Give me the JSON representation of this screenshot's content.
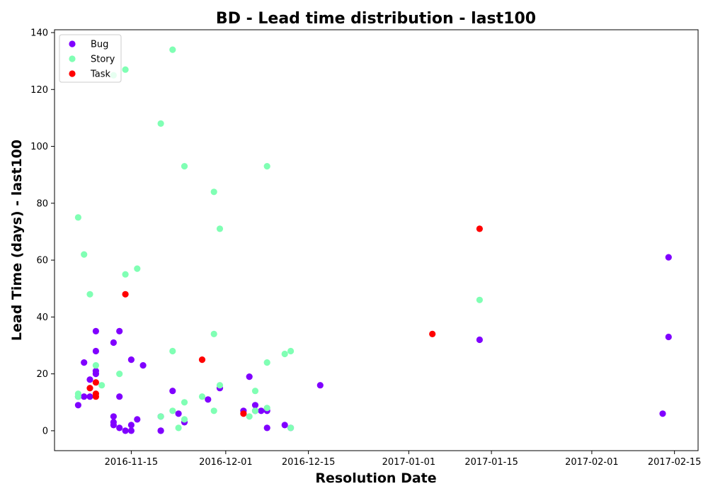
{
  "chart_data": {
    "type": "scatter",
    "title": "BD - Lead time distribution - last100",
    "xlabel": "Resolution Date",
    "ylabel": "Lead Time (days) - last100",
    "x_is_date": true,
    "xlim": [
      "2016-11-02",
      "2017-02-19"
    ],
    "ylim": [
      -7,
      141
    ],
    "x_ticks": [
      "2016-11-15",
      "2016-12-01",
      "2016-12-15",
      "2017-01-01",
      "2017-01-15",
      "2017-02-01",
      "2017-02-15"
    ],
    "x_tick_labels": [
      "2016-11-15",
      "2016-12-01",
      "2016-12-15",
      "2017-01-01",
      "2017-01-15",
      "2017-02-01",
      "2017-02-15"
    ],
    "y_ticks": [
      0,
      20,
      40,
      60,
      80,
      100,
      120,
      140
    ],
    "y_tick_labels": [
      "0",
      "20",
      "40",
      "60",
      "80",
      "100",
      "120",
      "140"
    ],
    "grid": false,
    "legend": "top-left",
    "series": [
      {
        "name": "Bug",
        "color": "#8000ff",
        "points": [
          {
            "x": "2016-11-06",
            "y": 9
          },
          {
            "x": "2016-11-06",
            "y": 12
          },
          {
            "x": "2016-11-07",
            "y": 24
          },
          {
            "x": "2016-11-07",
            "y": 12
          },
          {
            "x": "2016-11-08",
            "y": 18
          },
          {
            "x": "2016-11-08",
            "y": 12
          },
          {
            "x": "2016-11-09",
            "y": 28
          },
          {
            "x": "2016-11-09",
            "y": 35
          },
          {
            "x": "2016-11-09",
            "y": 21
          },
          {
            "x": "2016-11-09",
            "y": 20
          },
          {
            "x": "2016-11-12",
            "y": 31
          },
          {
            "x": "2016-11-12",
            "y": 5
          },
          {
            "x": "2016-11-12",
            "y": 3
          },
          {
            "x": "2016-11-12",
            "y": 2
          },
          {
            "x": "2016-11-13",
            "y": 35
          },
          {
            "x": "2016-11-13",
            "y": 12
          },
          {
            "x": "2016-11-13",
            "y": 1
          },
          {
            "x": "2016-11-14",
            "y": 0
          },
          {
            "x": "2016-11-15",
            "y": 25
          },
          {
            "x": "2016-11-15",
            "y": 2
          },
          {
            "x": "2016-11-15",
            "y": 0
          },
          {
            "x": "2016-11-16",
            "y": 4
          },
          {
            "x": "2016-11-17",
            "y": 23
          },
          {
            "x": "2016-11-20",
            "y": 0
          },
          {
            "x": "2016-11-20",
            "y": 5
          },
          {
            "x": "2016-11-20",
            "y": 0
          },
          {
            "x": "2016-11-22",
            "y": 14
          },
          {
            "x": "2016-11-23",
            "y": 6
          },
          {
            "x": "2016-11-24",
            "y": 3
          },
          {
            "x": "2016-11-28",
            "y": 11
          },
          {
            "x": "2016-11-30",
            "y": 15
          },
          {
            "x": "2016-12-04",
            "y": 7
          },
          {
            "x": "2016-12-05",
            "y": 19
          },
          {
            "x": "2016-12-06",
            "y": 9
          },
          {
            "x": "2016-12-06",
            "y": 7
          },
          {
            "x": "2016-12-07",
            "y": 7
          },
          {
            "x": "2016-12-08",
            "y": 7
          },
          {
            "x": "2016-12-08",
            "y": 1
          },
          {
            "x": "2016-12-11",
            "y": 2
          },
          {
            "x": "2016-12-12",
            "y": 1
          },
          {
            "x": "2016-12-17",
            "y": 16
          },
          {
            "x": "2017-01-13",
            "y": 32
          },
          {
            "x": "2017-02-13",
            "y": 6
          },
          {
            "x": "2017-02-14",
            "y": 33
          },
          {
            "x": "2017-02-14",
            "y": 61
          }
        ]
      },
      {
        "name": "Story",
        "color": "#80ffb4",
        "points": [
          {
            "x": "2016-11-06",
            "y": 75
          },
          {
            "x": "2016-11-06",
            "y": 13
          },
          {
            "x": "2016-11-06",
            "y": 12
          },
          {
            "x": "2016-11-07",
            "y": 62
          },
          {
            "x": "2016-11-08",
            "y": 48
          },
          {
            "x": "2016-11-09",
            "y": 23
          },
          {
            "x": "2016-11-10",
            "y": 16
          },
          {
            "x": "2016-11-12",
            "y": 125
          },
          {
            "x": "2016-11-13",
            "y": 20
          },
          {
            "x": "2016-11-14",
            "y": 127
          },
          {
            "x": "2016-11-14",
            "y": 55
          },
          {
            "x": "2016-11-16",
            "y": 57
          },
          {
            "x": "2016-11-20",
            "y": 108
          },
          {
            "x": "2016-11-20",
            "y": 5
          },
          {
            "x": "2016-11-22",
            "y": 134
          },
          {
            "x": "2016-11-22",
            "y": 28
          },
          {
            "x": "2016-11-22",
            "y": 7
          },
          {
            "x": "2016-11-23",
            "y": 1
          },
          {
            "x": "2016-11-24",
            "y": 93
          },
          {
            "x": "2016-11-24",
            "y": 10
          },
          {
            "x": "2016-11-24",
            "y": 4
          },
          {
            "x": "2016-11-27",
            "y": 12
          },
          {
            "x": "2016-11-29",
            "y": 84
          },
          {
            "x": "2016-11-29",
            "y": 34
          },
          {
            "x": "2016-11-29",
            "y": 7
          },
          {
            "x": "2016-11-30",
            "y": 71
          },
          {
            "x": "2016-11-30",
            "y": 16
          },
          {
            "x": "2016-12-05",
            "y": 5
          },
          {
            "x": "2016-12-06",
            "y": 14
          },
          {
            "x": "2016-12-06",
            "y": 7
          },
          {
            "x": "2016-12-08",
            "y": 93
          },
          {
            "x": "2016-12-08",
            "y": 24
          },
          {
            "x": "2016-12-08",
            "y": 8
          },
          {
            "x": "2016-12-11",
            "y": 27
          },
          {
            "x": "2016-12-12",
            "y": 28
          },
          {
            "x": "2016-12-12",
            "y": 1
          },
          {
            "x": "2017-01-13",
            "y": 46
          }
        ]
      },
      {
        "name": "Task",
        "color": "#ff0000",
        "points": [
          {
            "x": "2016-11-08",
            "y": 15
          },
          {
            "x": "2016-11-09",
            "y": 17
          },
          {
            "x": "2016-11-09",
            "y": 12
          },
          {
            "x": "2016-11-09",
            "y": 13
          },
          {
            "x": "2016-11-14",
            "y": 48
          },
          {
            "x": "2016-11-27",
            "y": 25
          },
          {
            "x": "2016-12-04",
            "y": 6
          },
          {
            "x": "2017-01-05",
            "y": 34
          },
          {
            "x": "2017-01-13",
            "y": 71
          }
        ]
      }
    ]
  }
}
